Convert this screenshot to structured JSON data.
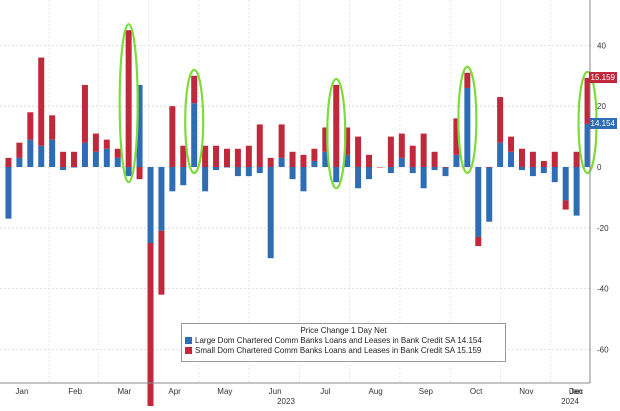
{
  "chart_data": {
    "type": "bar",
    "title": "",
    "xlabel": "",
    "ylabel": "",
    "ylim": [
      -70,
      52
    ],
    "yticks": [
      40,
      20,
      0,
      -20,
      -40,
      -60
    ],
    "months": [
      "Jan",
      "Feb",
      "Mar",
      "Apr",
      "May",
      "Jun",
      "Jul",
      "Aug",
      "Sep",
      "Oct",
      "Nov",
      "Dec",
      "Jan"
    ],
    "year_labels": [
      "2023",
      "2024"
    ],
    "grid": true,
    "legend": {
      "title": "Price Change 1 Day Net",
      "placement": "bottom-center",
      "entries": [
        "Large Dom Chartered Comm Banks Loans and Leases in Bank Credit SA 14.154",
        "Small Dom Chartered Comm Banks Loans and Leases in Bank Credit SA 15.159"
      ]
    },
    "latest_labels": [
      "15.159",
      "14.154"
    ],
    "series": [
      {
        "color": "#2e6db4",
        "values": [
          -17,
          3,
          9,
          7,
          9,
          -1,
          0,
          8,
          5,
          6,
          3,
          -3,
          27,
          -25,
          -21,
          -8,
          -6,
          21,
          -8,
          -1,
          0,
          -3,
          -3,
          -2,
          -30,
          3,
          -4,
          -8,
          2,
          5,
          -5,
          4,
          -7,
          -4,
          0,
          -2,
          3,
          -2,
          -7,
          -1,
          -3,
          4,
          26,
          -23,
          -18,
          8,
          5,
          -1,
          -3,
          -2,
          -5,
          -11,
          -16,
          14.154
        ]
      },
      {
        "color": "#c0283c",
        "values": [
          3,
          5,
          9,
          29,
          8,
          5,
          5,
          19,
          6,
          3,
          3,
          45,
          -4,
          -61,
          -21,
          20,
          7,
          9,
          7,
          7,
          6,
          6,
          7,
          14,
          3,
          11,
          5,
          4,
          4,
          8,
          27,
          9,
          10,
          4,
          0,
          10,
          8,
          7,
          11,
          5,
          0,
          12,
          5,
          -3,
          0,
          15,
          5,
          6,
          5,
          2,
          5,
          -3,
          5,
          15.159
        ]
      }
    ],
    "highlight_bars": [
      11,
      17,
      30,
      42,
      53
    ]
  }
}
